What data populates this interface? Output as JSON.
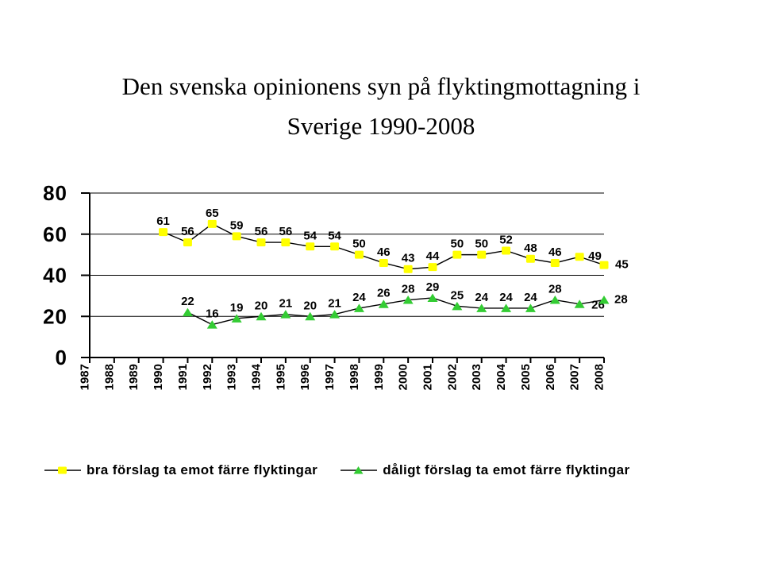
{
  "slide": {
    "title_line1": "Den svenska opinionens syn på flyktingmottagning i",
    "title_line2": "Sverige 1990-2008"
  },
  "chart_data": {
    "type": "line",
    "title": "Den svenska opinionens syn på flyktingmottagning i Sverige 1990-2008",
    "x_categories": [
      "1987",
      "1988",
      "1989",
      "1990",
      "1991",
      "1992",
      "1993",
      "1994",
      "1995",
      "1996",
      "1997",
      "1998",
      "1999",
      "2000",
      "2001",
      "2002",
      "2003",
      "2004",
      "2005",
      "2006",
      "2007",
      "2008"
    ],
    "ylim": [
      0,
      80
    ],
    "yticks": [
      0,
      20,
      40,
      60,
      80
    ],
    "grid": "horizontal-only",
    "legend_position": "bottom",
    "axis_color": "#000000",
    "series": [
      {
        "name": "bra förslag ta emot färre flyktingar",
        "marker": "square",
        "marker_color": "#FFFF00",
        "line_color": "#000000",
        "start_category": "1990",
        "values": [
          61,
          56,
          65,
          59,
          56,
          56,
          54,
          54,
          50,
          46,
          43,
          44,
          50,
          50,
          52,
          48,
          46,
          49,
          45
        ]
      },
      {
        "name": "dåligt förslag ta emot färre flyktingar",
        "marker": "triangle",
        "marker_color": "#33CC33",
        "line_color": "#000000",
        "start_category": "1991",
        "values": [
          22,
          16,
          19,
          20,
          21,
          20,
          21,
          24,
          26,
          28,
          29,
          25,
          24,
          24,
          24,
          28,
          26,
          28
        ]
      }
    ]
  }
}
